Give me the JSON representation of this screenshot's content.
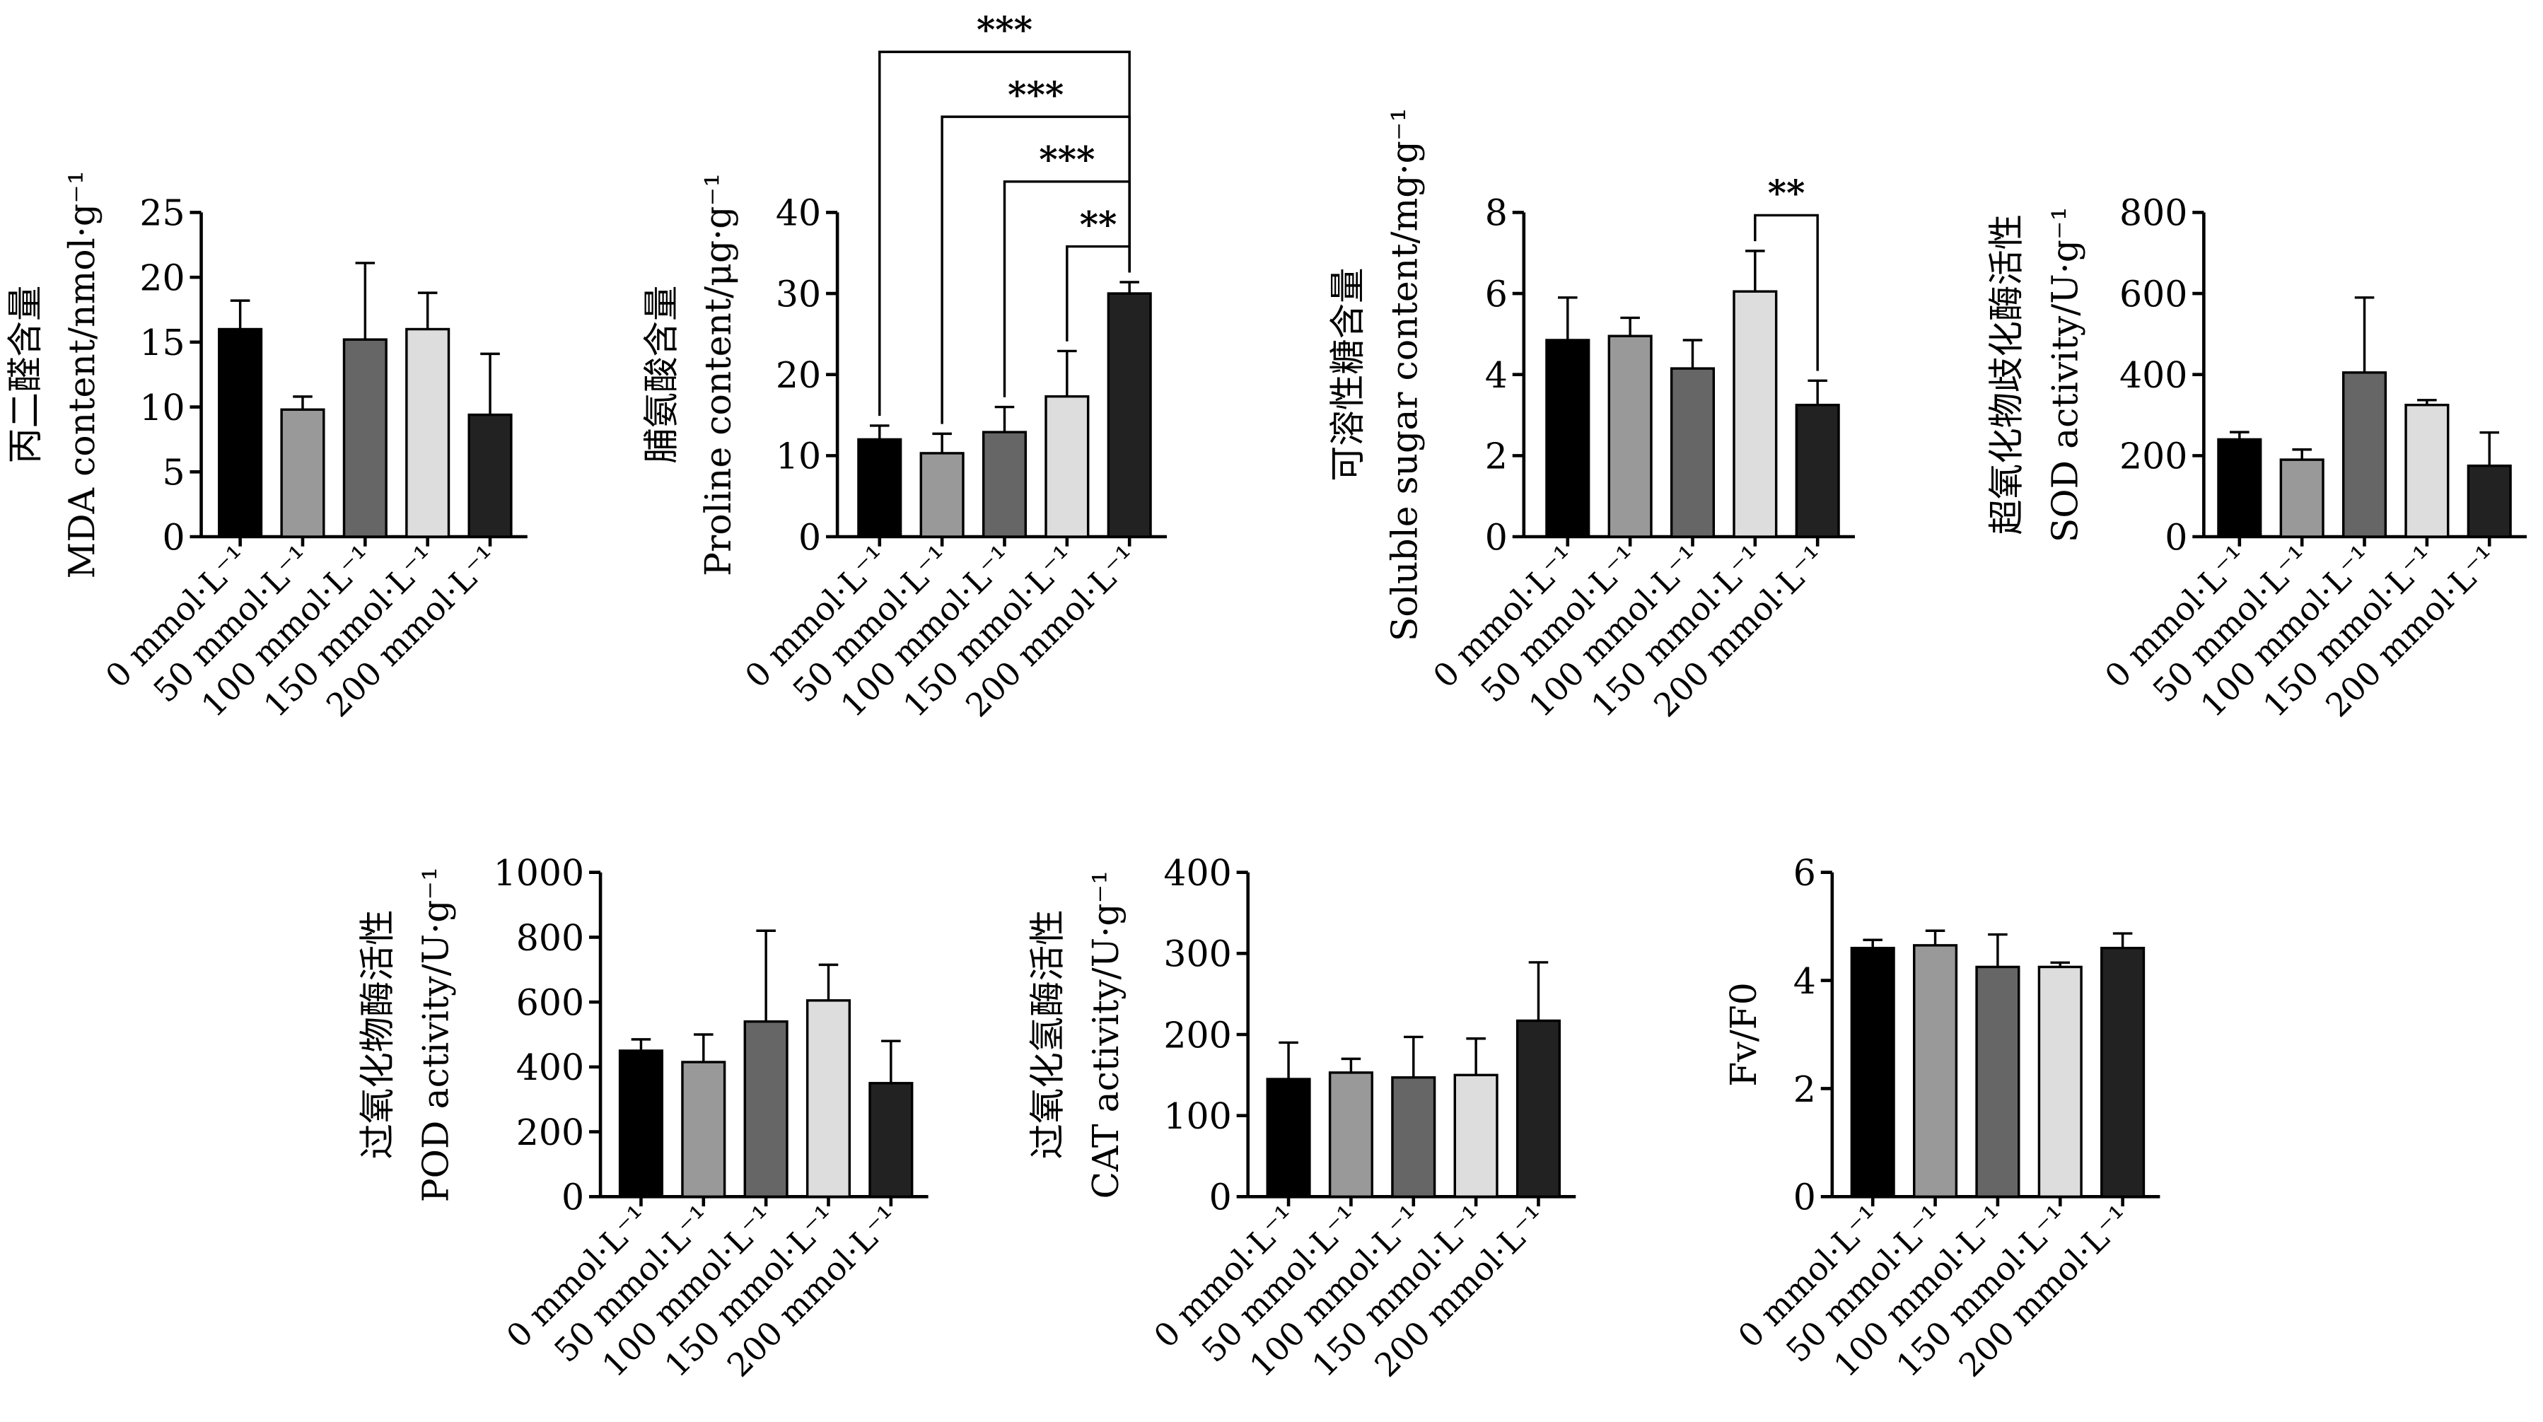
{
  "colors": [
    "#000000",
    "#999999",
    "#666666",
    "#dddddd",
    "#222222"
  ],
  "chart_data": [
    {
      "type": "bar",
      "categories": [
        "0 mmol·L⁻¹",
        "50 mmol·L⁻¹",
        "100 mmol·L⁻¹",
        "150 mmol·L⁻¹",
        "200 mmol·L⁻¹"
      ],
      "values": [
        16,
        9.8,
        15.2,
        16,
        9.4
      ],
      "errors": [
        2.2,
        1.0,
        5.9,
        2.8,
        4.7
      ],
      "ylabel_lines": [
        "丙二醛含量",
        "MDA content/nmol·g⁻¹"
      ],
      "ylim": [
        0,
        25
      ],
      "yticks": [
        0,
        5,
        10,
        15,
        20,
        25
      ],
      "significance": []
    },
    {
      "type": "bar",
      "categories": [
        "0 mmol·L⁻¹",
        "50 mmol·L⁻¹",
        "100 mmol·L⁻¹",
        "150 mmol·L⁻¹",
        "200 mmol·L⁻¹"
      ],
      "values": [
        12,
        10.3,
        12.9,
        17.3,
        30
      ],
      "errors": [
        1.7,
        2.4,
        3.1,
        5.6,
        1.4
      ],
      "ylabel_lines": [
        "脯氨酸含量",
        "Proline content/μg·g⁻¹"
      ],
      "ylim": [
        0,
        40
      ],
      "yticks": [
        0,
        10,
        20,
        30,
        40
      ],
      "significance": [
        {
          "from": 0,
          "to": 4,
          "label": "***"
        },
        {
          "from": 1,
          "to": 4,
          "label": "***"
        },
        {
          "from": 2,
          "to": 4,
          "label": "***"
        },
        {
          "from": 3,
          "to": 4,
          "label": "**"
        }
      ]
    },
    {
      "type": "bar",
      "categories": [
        "0 mmol·L⁻¹",
        "50 mmol·L⁻¹",
        "100 mmol·L⁻¹",
        "150 mmol·L⁻¹",
        "200 mmol·L⁻¹"
      ],
      "values": [
        4.85,
        4.95,
        4.15,
        6.05,
        3.25
      ],
      "errors": [
        1.05,
        0.45,
        0.7,
        1.0,
        0.6
      ],
      "ylabel_lines": [
        "可溶性糖含量",
        "Soluble sugar content/mg·g⁻¹"
      ],
      "ylim": [
        0,
        8
      ],
      "yticks": [
        0,
        2,
        4,
        6,
        8
      ],
      "significance": [
        {
          "from": 3,
          "to": 4,
          "label": "**"
        }
      ]
    },
    {
      "type": "bar",
      "categories": [
        "0 mmol·L⁻¹",
        "50 mmol·L⁻¹",
        "100 mmol·L⁻¹",
        "150 mmol·L⁻¹",
        "200 mmol·L⁻¹"
      ],
      "values": [
        240,
        190,
        405,
        325,
        175
      ],
      "errors": [
        18,
        25,
        185,
        12,
        82
      ],
      "ylabel_lines": [
        "超氧化物歧化酶活性",
        "SOD activity/U·g⁻¹"
      ],
      "ylim": [
        0,
        800
      ],
      "yticks": [
        0,
        200,
        400,
        600,
        800
      ],
      "significance": []
    },
    {
      "type": "bar",
      "categories": [
        "0 mmol·L⁻¹",
        "50 mmol·L⁻¹",
        "100 mmol·L⁻¹",
        "150 mmol·L⁻¹",
        "200 mmol·L⁻¹"
      ],
      "values": [
        450,
        415,
        540,
        605,
        350
      ],
      "errors": [
        35,
        85,
        280,
        110,
        130
      ],
      "ylabel_lines": [
        "过氧化物酶活性",
        "POD activity/U·g⁻¹"
      ],
      "ylim": [
        0,
        1000
      ],
      "yticks": [
        0,
        200,
        400,
        600,
        800,
        1000
      ],
      "significance": []
    },
    {
      "type": "bar",
      "categories": [
        "0 mmol·L⁻¹",
        "50 mmol·L⁻¹",
        "100 mmol·L⁻¹",
        "150 mmol·L⁻¹",
        "200 mmol·L⁻¹"
      ],
      "values": [
        145,
        153,
        147,
        150,
        217
      ],
      "errors": [
        45,
        17,
        50,
        45,
        72
      ],
      "ylabel_lines": [
        "过氧化氢酶活性",
        "CAT activity/U·g⁻¹"
      ],
      "ylim": [
        0,
        400
      ],
      "yticks": [
        0,
        100,
        200,
        300,
        400
      ],
      "significance": []
    },
    {
      "type": "bar",
      "categories": [
        "0 mmol·L⁻¹",
        "50 mmol·L⁻¹",
        "100 mmol·L⁻¹",
        "150 mmol·L⁻¹",
        "200 mmol·L⁻¹"
      ],
      "values": [
        4.6,
        4.65,
        4.25,
        4.25,
        4.6
      ],
      "errors": [
        0.15,
        0.27,
        0.6,
        0.08,
        0.27
      ],
      "ylabel_lines": [
        "Fv/F0"
      ],
      "ylim": [
        0,
        6
      ],
      "yticks": [
        0,
        2,
        4,
        6
      ],
      "significance": []
    }
  ]
}
